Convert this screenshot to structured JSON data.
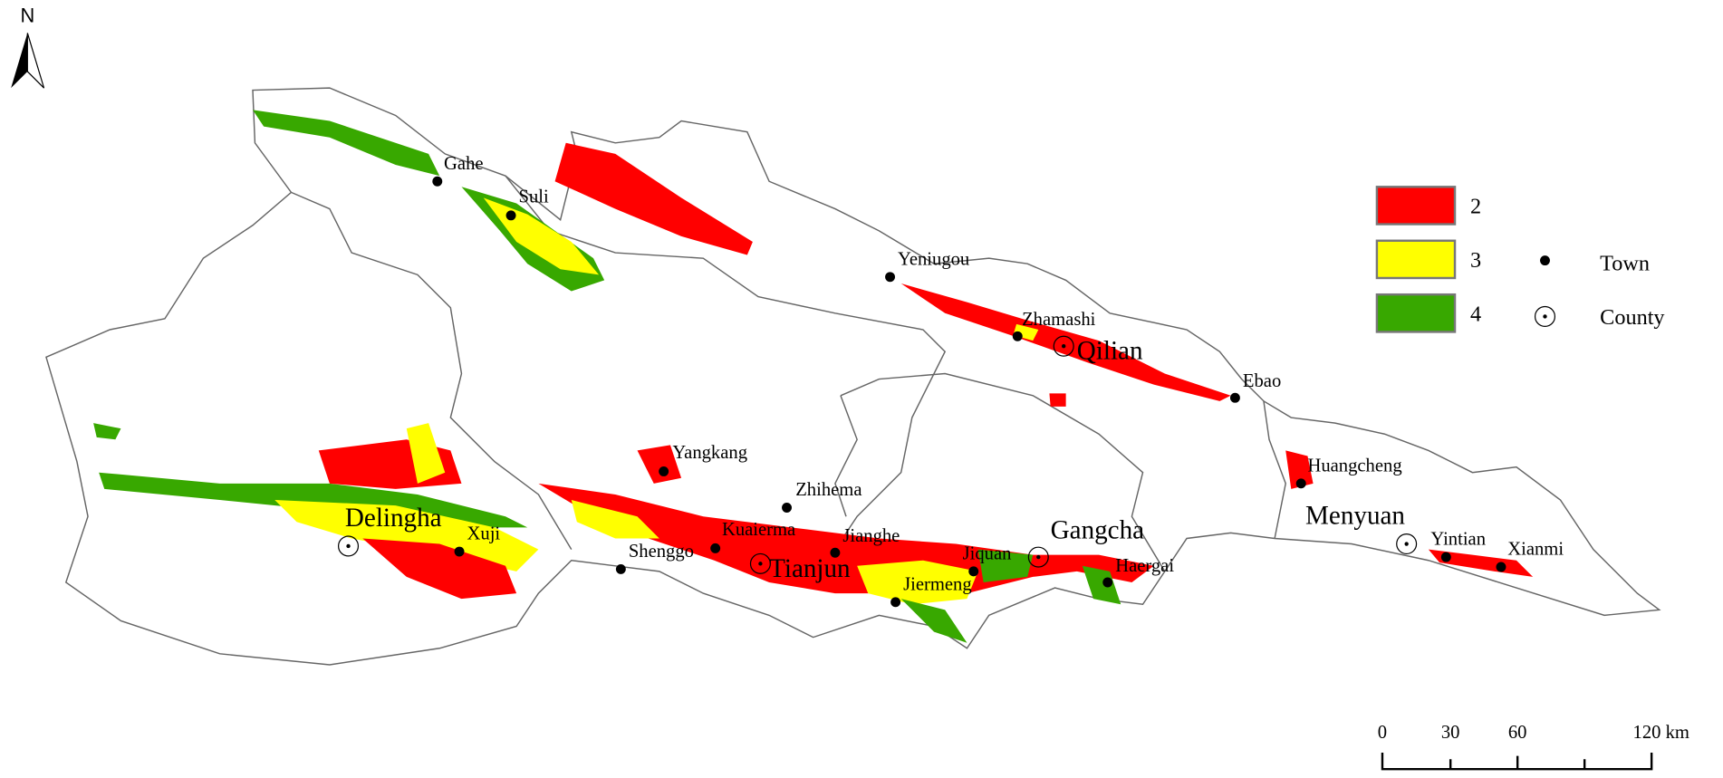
{
  "north": "N",
  "legend": {
    "classes": [
      {
        "label": "2",
        "color": "#ff0000"
      },
      {
        "label": "3",
        "color": "#ffff00"
      },
      {
        "label": "4",
        "color": "#38a800"
      }
    ],
    "symbols": [
      "Town",
      "County"
    ]
  },
  "scale_bar": [
    "0",
    "30",
    "60",
    "120 km"
  ],
  "places": [
    {
      "name": "Gahe",
      "type": "town"
    },
    {
      "name": "Suli",
      "type": "town"
    },
    {
      "name": "Yeniugou",
      "type": "town"
    },
    {
      "name": "Zhamashi",
      "type": "town"
    },
    {
      "name": "Qilian",
      "type": "county"
    },
    {
      "name": "Ebao",
      "type": "town"
    },
    {
      "name": "Yangkang",
      "type": "town"
    },
    {
      "name": "Zhihema",
      "type": "town"
    },
    {
      "name": "Huangcheng",
      "type": "town"
    },
    {
      "name": "Menyuan",
      "type": "county"
    },
    {
      "name": "Yintian",
      "type": "town"
    },
    {
      "name": "Xianmi",
      "type": "town"
    },
    {
      "name": "Delingha",
      "type": "county"
    },
    {
      "name": "Xuji",
      "type": "town"
    },
    {
      "name": "Shenggo",
      "type": "town"
    },
    {
      "name": "Kuaierma",
      "type": "town"
    },
    {
      "name": "Tianjun",
      "type": "county"
    },
    {
      "name": "Jianghe",
      "type": "town"
    },
    {
      "name": "Gangcha",
      "type": "county"
    },
    {
      "name": "Jiquan",
      "type": "town"
    },
    {
      "name": "Jiermeng",
      "type": "town"
    },
    {
      "name": "Haergai",
      "type": "town"
    }
  ]
}
